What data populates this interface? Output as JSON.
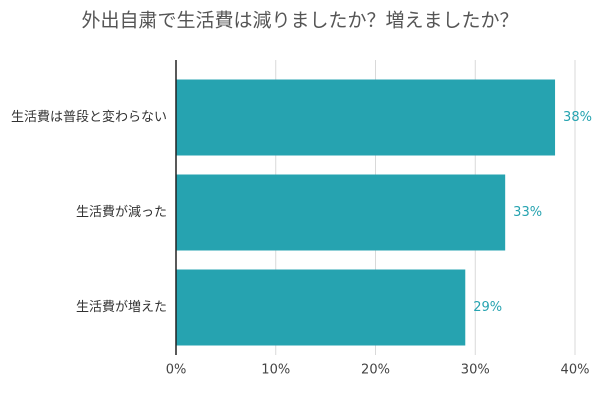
{
  "chart_data": {
    "type": "hbar",
    "title": "外出自粛で生活費は減りましたか？増えましたか？",
    "categories": [
      "生活費は普段と変わらない",
      "生活費が減った",
      "生活費が増えた"
    ],
    "values": [
      38,
      33,
      29
    ],
    "value_labels": [
      "38%",
      "33%",
      "29%"
    ],
    "color": "#26a3b0",
    "xlim": [
      0,
      40
    ],
    "xticks": [
      {
        "value": 0,
        "label": "0%"
      },
      {
        "value": 10,
        "label": "10%"
      },
      {
        "value": 20,
        "label": "20%"
      },
      {
        "value": 30,
        "label": "30%"
      },
      {
        "value": 40,
        "label": "40%"
      }
    ],
    "grid": true
  }
}
